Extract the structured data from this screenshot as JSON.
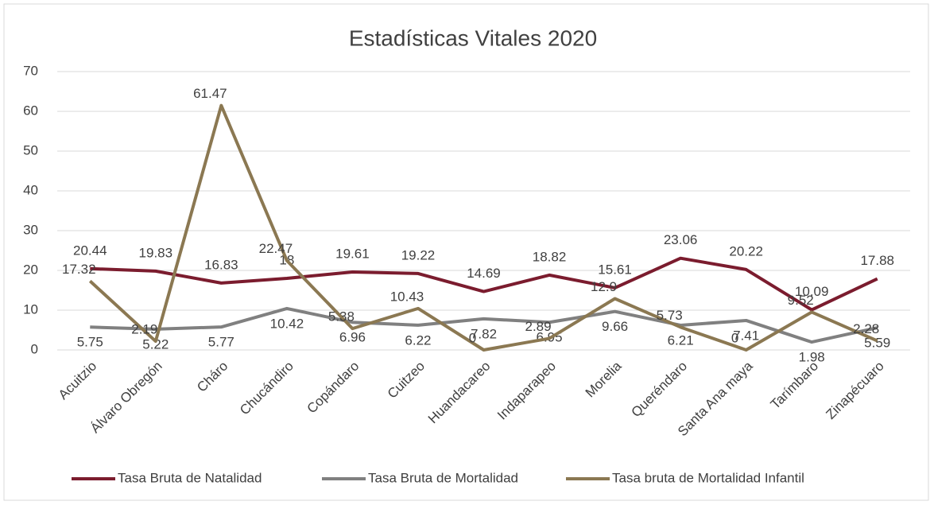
{
  "chart_data": {
    "type": "line",
    "title": "Estadísticas Vitales 2020",
    "categories": [
      "Acuitzio",
      "Álvaro Obregón",
      "Cháro",
      "Chucándiro",
      "Copándaro",
      "Cuitzeo",
      "Huandacareo",
      "Indaparapeo",
      "Morelia",
      "Queréndaro",
      "Santa Ana maya",
      "Tarímbaro",
      "Zinapécuaro"
    ],
    "series": [
      {
        "name": "Tasa Bruta de Natalidad",
        "color": "#7b1c2e",
        "values": [
          20.44,
          19.83,
          16.83,
          18,
          19.61,
          19.22,
          14.69,
          18.82,
          15.61,
          23.06,
          20.22,
          10.09,
          17.88
        ]
      },
      {
        "name": "Tasa Bruta de Mortalidad",
        "color": "#808080",
        "values": [
          5.75,
          5.22,
          5.77,
          10.42,
          6.96,
          6.22,
          7.82,
          6.95,
          9.66,
          6.21,
          7.41,
          1.98,
          5.59
        ]
      },
      {
        "name": "Tasa bruta de Mortalidad Infantil",
        "color": "#8b7852",
        "values": [
          17.32,
          2.19,
          61.47,
          22.47,
          5.38,
          10.43,
          0,
          2.89,
          12.9,
          5.73,
          0,
          9.52,
          2.28
        ]
      }
    ],
    "ylim": [
      0,
      70
    ],
    "yticks": [
      0,
      10,
      20,
      30,
      40,
      50,
      60,
      70
    ],
    "grid": true,
    "legend": "bottom"
  }
}
